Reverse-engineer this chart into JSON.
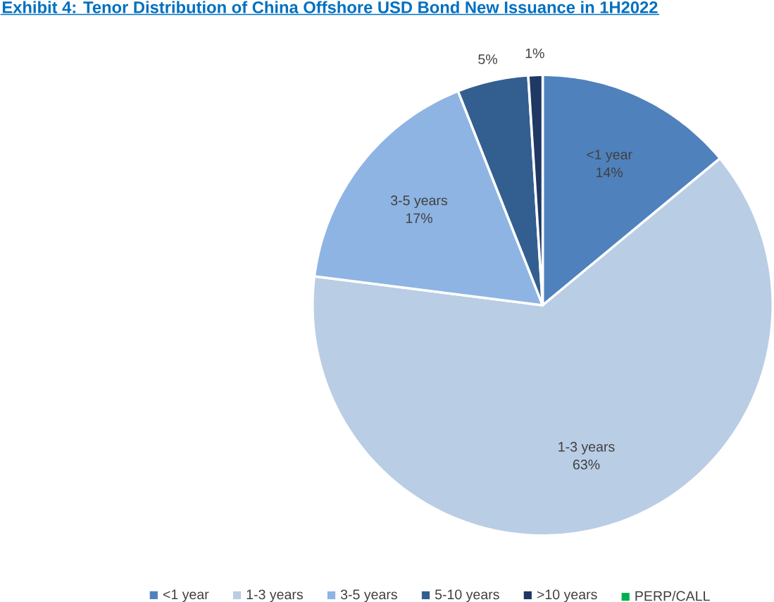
{
  "chart_data": {
    "type": "pie",
    "title": "Exhibit 4: Tenor Distribution of China Offshore USD Bond New Issuance in 1H2022",
    "categories": [
      "<1 year",
      "1-3 years",
      "3-5 years",
      "5-10 years",
      ">10 years",
      "PERP/CALL"
    ],
    "values": [
      14,
      63,
      17,
      5,
      1,
      0
    ],
    "colors": [
      "#4f81bd",
      "#b9cde5",
      "#8eb4e3",
      "#335e90",
      "#1f3864",
      "#00b050"
    ],
    "value_labels": [
      "14%",
      "63%",
      "17%",
      "5%",
      "1%",
      null
    ],
    "legend": "bottom"
  }
}
